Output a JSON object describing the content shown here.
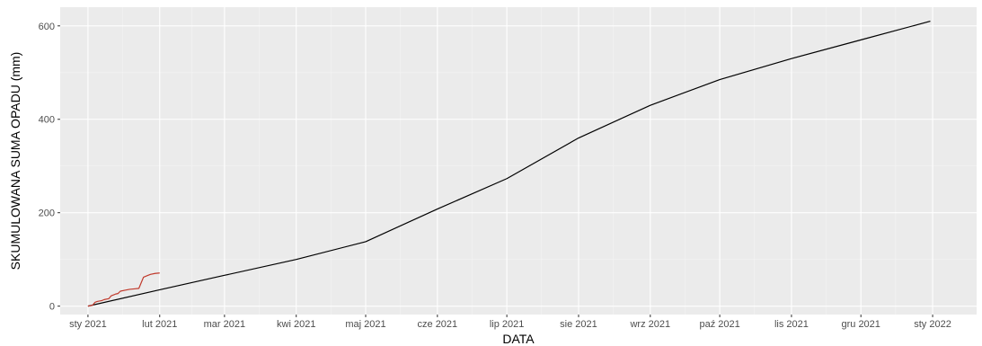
{
  "chart_data": {
    "type": "line",
    "title": "",
    "xlabel": "DATA",
    "ylabel": "SKUMULOWANA SUMA OPADU (mm)",
    "x_type": "date",
    "xlim": [
      "2020-12-20",
      "2022-01-20"
    ],
    "ylim": [
      -18,
      640
    ],
    "grid": true,
    "legend": "none",
    "colors": {
      "panel": "#ebebeb",
      "grid_major": "#ffffff",
      "grid_minor": "#f4f4f4",
      "tick": "#333333"
    },
    "x_ticks": [
      {
        "date": "2021-01-01",
        "label": "sty 2021"
      },
      {
        "date": "2021-02-01",
        "label": "lut 2021"
      },
      {
        "date": "2021-03-01",
        "label": "mar 2021"
      },
      {
        "date": "2021-04-01",
        "label": "kwi 2021"
      },
      {
        "date": "2021-05-01",
        "label": "maj 2021"
      },
      {
        "date": "2021-06-01",
        "label": "cze 2021"
      },
      {
        "date": "2021-07-01",
        "label": "lip 2021"
      },
      {
        "date": "2021-08-01",
        "label": "sie 2021"
      },
      {
        "date": "2021-09-01",
        "label": "wrz 2021"
      },
      {
        "date": "2021-10-01",
        "label": "paź 2021"
      },
      {
        "date": "2021-11-01",
        "label": "lis 2021"
      },
      {
        "date": "2021-12-01",
        "label": "gru 2021"
      },
      {
        "date": "2022-01-01",
        "label": "sty 2022"
      }
    ],
    "y_ticks": [
      0,
      200,
      400,
      600
    ],
    "series": [
      {
        "color": "#000000",
        "points": [
          {
            "x": "2021-01-01",
            "y": 0
          },
          {
            "x": "2021-02-01",
            "y": 35
          },
          {
            "x": "2021-03-01",
            "y": 66
          },
          {
            "x": "2021-04-01",
            "y": 100
          },
          {
            "x": "2021-05-01",
            "y": 138
          },
          {
            "x": "2021-06-01",
            "y": 208
          },
          {
            "x": "2021-07-01",
            "y": 273
          },
          {
            "x": "2021-08-01",
            "y": 360
          },
          {
            "x": "2021-09-01",
            "y": 430
          },
          {
            "x": "2021-10-01",
            "y": 485
          },
          {
            "x": "2021-11-01",
            "y": 530
          },
          {
            "x": "2021-12-01",
            "y": 570
          },
          {
            "x": "2021-12-31",
            "y": 610
          }
        ]
      },
      {
        "color": "#c0392b",
        "points": [
          {
            "x": "2021-01-01",
            "y": 0
          },
          {
            "x": "2021-01-03",
            "y": 2
          },
          {
            "x": "2021-01-04",
            "y": 8
          },
          {
            "x": "2021-01-05",
            "y": 10
          },
          {
            "x": "2021-01-07",
            "y": 12
          },
          {
            "x": "2021-01-08",
            "y": 14
          },
          {
            "x": "2021-01-10",
            "y": 16
          },
          {
            "x": "2021-01-11",
            "y": 22
          },
          {
            "x": "2021-01-13",
            "y": 26
          },
          {
            "x": "2021-01-14",
            "y": 27
          },
          {
            "x": "2021-01-15",
            "y": 32
          },
          {
            "x": "2021-01-17",
            "y": 34
          },
          {
            "x": "2021-01-19",
            "y": 36
          },
          {
            "x": "2021-01-21",
            "y": 37
          },
          {
            "x": "2021-01-23",
            "y": 38
          },
          {
            "x": "2021-01-24",
            "y": 50
          },
          {
            "x": "2021-01-25",
            "y": 62
          },
          {
            "x": "2021-01-27",
            "y": 66
          },
          {
            "x": "2021-01-28",
            "y": 68
          },
          {
            "x": "2021-01-30",
            "y": 70
          },
          {
            "x": "2021-02-01",
            "y": 71
          }
        ]
      }
    ]
  }
}
